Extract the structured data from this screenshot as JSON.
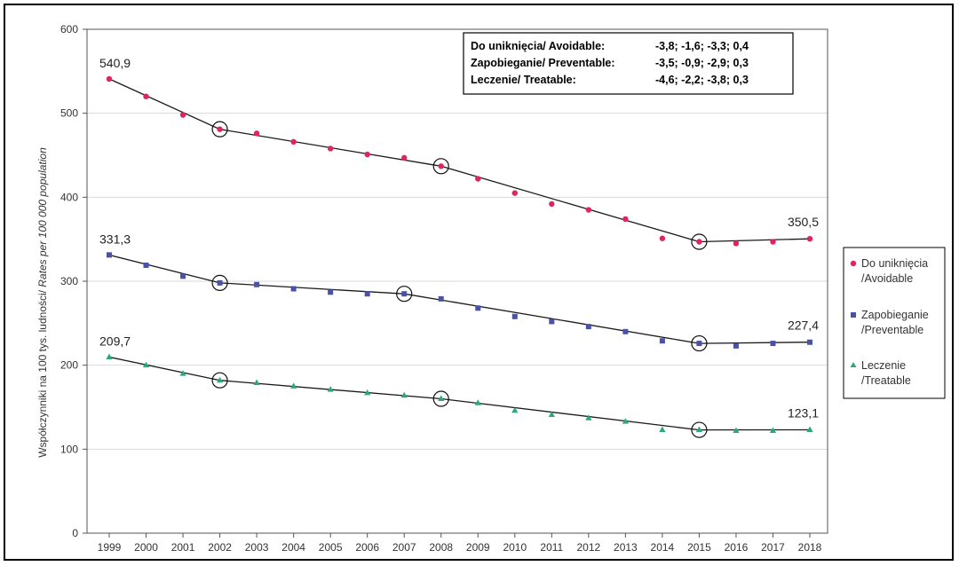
{
  "chart_data": {
    "type": "line",
    "x": [
      1999,
      2000,
      2001,
      2002,
      2003,
      2004,
      2005,
      2006,
      2007,
      2008,
      2009,
      2010,
      2011,
      2012,
      2013,
      2014,
      2015,
      2016,
      2017,
      2018
    ],
    "x_tick_labels": [
      "1999",
      "2000",
      "2001",
      "2002",
      "2003",
      "2004",
      "2005",
      "2006",
      "2007",
      "2008",
      "2009",
      "2010",
      "2011",
      "2012",
      "2013",
      "2014",
      "2015",
      "2016",
      "2017",
      "2018"
    ],
    "ylim": [
      0,
      600
    ],
    "y_ticks": [
      0,
      100,
      200,
      300,
      400,
      500,
      600
    ],
    "ylabel_regular": "Współczynniki na 100 tys. ludności/ ",
    "ylabel_italic": "Rates per 100 000 population",
    "grid": "horizontal",
    "legend_position": "right",
    "series": [
      {
        "name": "Do uniknięcia /Avoidable",
        "legend_line1": "Do uniknięcia",
        "legend_line2": "/Avoidable",
        "color": "#e0245e",
        "marker": "circle",
        "values": [
          540.9,
          520,
          498,
          481,
          476,
          466,
          458,
          451,
          447,
          437,
          422,
          405,
          392,
          385,
          374,
          351,
          347,
          345,
          347,
          350.5
        ],
        "trend": [
          540.9,
          481,
          437,
          347,
          350.5
        ],
        "first_label": "540,9",
        "last_label": "350,5"
      },
      {
        "name": "Zapobieganie /Preventable",
        "legend_line1": "Zapobieganie",
        "legend_line2": "/Preventable",
        "color": "#4a52a8",
        "marker": "square",
        "values": [
          331.3,
          319,
          306,
          298,
          296,
          291,
          287,
          285,
          285,
          279,
          268,
          258,
          252,
          246,
          240,
          229,
          226,
          223,
          226,
          227.4
        ],
        "trend": [
          331.3,
          298,
          285,
          226,
          227.4
        ],
        "first_label": "331,3",
        "last_label": "227,4"
      },
      {
        "name": "Leczenie /Treatable",
        "legend_line1": "Leczenie",
        "legend_line2": "/Treatable",
        "color": "#2aa883",
        "marker": "triangle",
        "values": [
          209.7,
          200,
          190,
          182,
          179,
          175,
          171,
          167,
          164,
          160,
          155,
          146,
          141,
          137,
          133,
          123,
          123,
          122,
          122,
          123.1
        ],
        "trend": [
          209.7,
          182,
          160,
          123,
          123.1
        ],
        "first_label": "209,7",
        "last_label": "123,1"
      }
    ],
    "joinpoints": [
      {
        "series": 0,
        "year": 2002,
        "value": 481
      },
      {
        "series": 0,
        "year": 2008,
        "value": 437
      },
      {
        "series": 0,
        "year": 2015,
        "value": 347
      },
      {
        "series": 1,
        "year": 2002,
        "value": 298
      },
      {
        "series": 1,
        "year": 2007,
        "value": 285
      },
      {
        "series": 1,
        "year": 2015,
        "value": 226
      },
      {
        "series": 2,
        "year": 2002,
        "value": 182
      },
      {
        "series": 2,
        "year": 2008,
        "value": 160
      },
      {
        "series": 2,
        "year": 2015,
        "value": 123
      }
    ],
    "annotation": {
      "rows": [
        {
          "label": "Do uniknięcia/ Avoidable:",
          "values": "-3,8; -1,6; -3,3; 0,4"
        },
        {
          "label": "Zapobieganie/ Preventable:",
          "values": "-3,5; -0,9; -2,9; 0,3"
        },
        {
          "label": "Leczenie/ Treatable:",
          "values": "-4,6; -2,2; -3,8; 0,3"
        }
      ]
    }
  }
}
